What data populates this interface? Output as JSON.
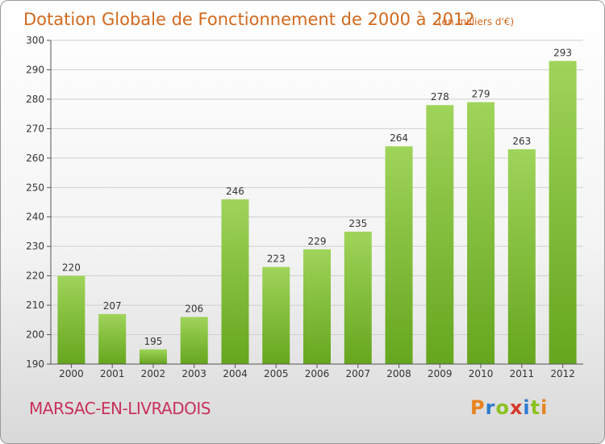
{
  "chart_data": {
    "type": "bar",
    "title": "Dotation Globale de Fonctionnement de 2000 à 2012",
    "subtitle": "(en milliers d'€)",
    "categories": [
      "2000",
      "2001",
      "2002",
      "2003",
      "2004",
      "2005",
      "2006",
      "2007",
      "2008",
      "2009",
      "2010",
      "2011",
      "2012"
    ],
    "values": [
      220,
      207,
      195,
      206,
      246,
      223,
      229,
      235,
      264,
      278,
      279,
      263,
      293
    ],
    "ylim": [
      190,
      300
    ],
    "yticks": [
      190,
      200,
      210,
      220,
      230,
      240,
      250,
      260,
      270,
      280,
      290,
      300
    ],
    "grid": true,
    "bar_color": "#7ab82e"
  },
  "footer": {
    "commune": "MARSAC-EN-LIVRADOIS",
    "logo_letters": [
      "P",
      "r",
      "o",
      "x",
      "i",
      "t",
      "i"
    ],
    "logo_colors": [
      "#e8821e",
      "#2e7bd0",
      "#8bc21e",
      "#d43a2a",
      "#2e7bd0",
      "#8bc21e",
      "#e8821e"
    ]
  }
}
